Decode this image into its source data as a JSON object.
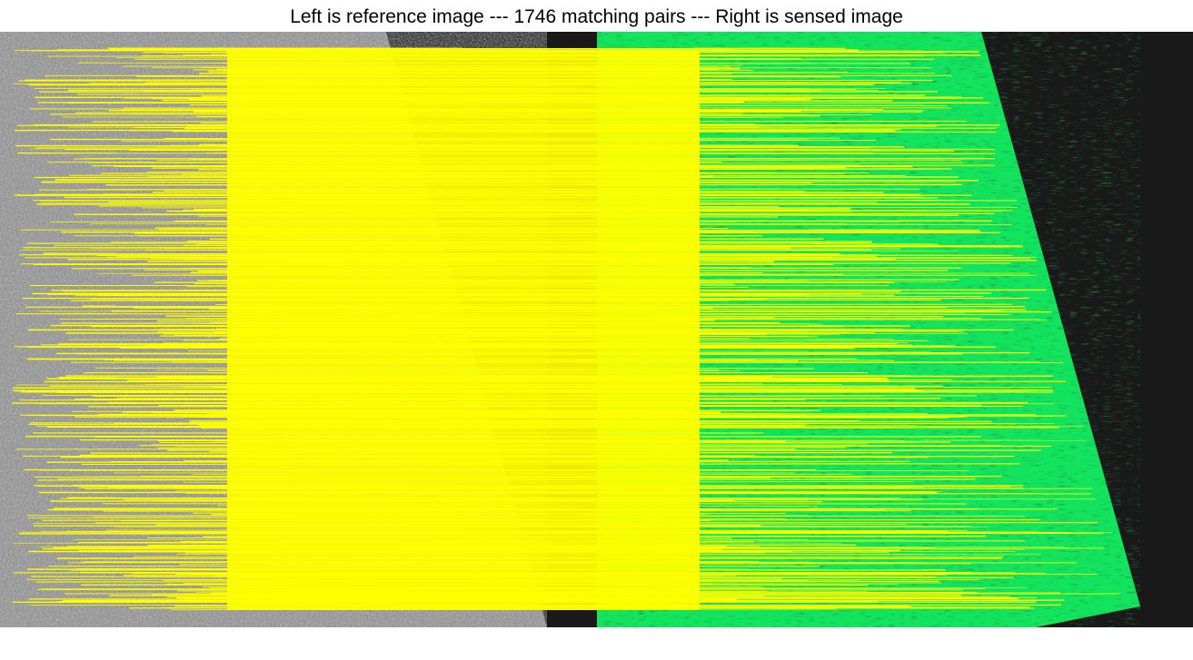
{
  "title": "Left is reference image --- 1746 matching pairs --- Right is sensed image",
  "matching_pairs": 1746,
  "colors": {
    "match_line": "#ffff00",
    "reference_tint": "#8c8c8c",
    "sensed_tint": "#12e45d",
    "background": "#191919"
  }
}
